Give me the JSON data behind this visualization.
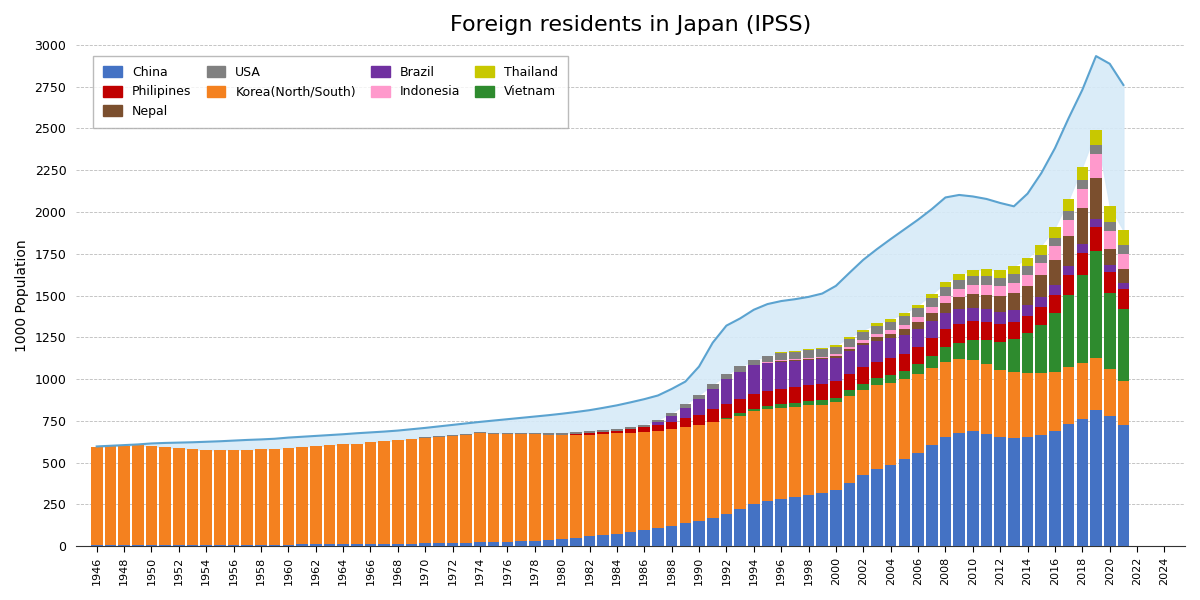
{
  "title": "Foreign residents in Japan (IPSS)",
  "ylabel": "1000 Population",
  "ylim": [
    0,
    3000
  ],
  "yticks": [
    0,
    250,
    500,
    750,
    1000,
    1250,
    1500,
    1750,
    2000,
    2250,
    2500,
    2750,
    3000
  ],
  "years": [
    1946,
    1947,
    1948,
    1949,
    1950,
    1951,
    1952,
    1953,
    1954,
    1955,
    1956,
    1957,
    1958,
    1959,
    1960,
    1961,
    1962,
    1963,
    1964,
    1965,
    1966,
    1967,
    1968,
    1969,
    1970,
    1971,
    1972,
    1973,
    1974,
    1975,
    1976,
    1977,
    1978,
    1979,
    1980,
    1981,
    1982,
    1983,
    1984,
    1985,
    1986,
    1987,
    1988,
    1989,
    1990,
    1991,
    1992,
    1993,
    1994,
    1995,
    1996,
    1997,
    1998,
    1999,
    2000,
    2001,
    2002,
    2003,
    2004,
    2005,
    2006,
    2007,
    2008,
    2009,
    2010,
    2011,
    2012,
    2013,
    2014,
    2015,
    2016,
    2017,
    2018,
    2019,
    2020,
    2021
  ],
  "china": [
    5,
    5,
    5,
    5,
    8,
    8,
    8,
    8,
    9,
    9,
    9,
    9,
    10,
    10,
    10,
    11,
    11,
    12,
    12,
    13,
    14,
    14,
    15,
    16,
    17,
    18,
    19,
    21,
    23,
    25,
    27,
    30,
    34,
    38,
    43,
    52,
    60,
    68,
    76,
    85,
    95,
    107,
    120,
    137,
    150,
    171,
    195,
    222,
    252,
    270,
    284,
    296,
    308,
    318,
    335,
    381,
    424,
    462,
    487,
    519,
    560,
    607,
    655,
    680,
    687,
    674,
    652,
    649,
    654,
    665,
    690,
    730,
    764,
    813,
    778,
    726
  ],
  "korea": [
    590,
    594,
    597,
    601,
    590,
    584,
    577,
    571,
    565,
    567,
    568,
    569,
    570,
    570,
    580,
    585,
    588,
    592,
    597,
    601,
    607,
    613,
    619,
    625,
    630,
    636,
    641,
    647,
    653,
    647,
    643,
    640,
    637,
    629,
    620,
    614,
    608,
    603,
    599,
    594,
    590,
    585,
    581,
    578,
    575,
    570,
    565,
    560,
    555,
    550,
    545,
    540,
    535,
    530,
    525,
    519,
    512,
    502,
    492,
    481,
    473,
    462,
    450,
    439,
    428,
    414,
    401,
    391,
    381,
    370,
    354,
    344,
    330,
    314,
    285,
    264
  ],
  "vietnam": [
    0,
    0,
    0,
    0,
    0,
    0,
    0,
    0,
    0,
    0,
    0,
    0,
    0,
    0,
    0,
    0,
    0,
    0,
    0,
    0,
    0,
    0,
    0,
    0,
    0,
    0,
    0,
    0,
    0,
    0,
    0,
    0,
    0,
    0,
    0,
    0,
    0,
    0,
    0,
    0,
    0,
    0,
    0,
    0,
    0,
    5,
    9,
    13,
    16,
    18,
    20,
    22,
    24,
    26,
    29,
    33,
    36,
    40,
    45,
    50,
    55,
    70,
    85,
    100,
    120,
    146,
    170,
    200,
    240,
    290,
    350,
    430,
    530,
    640,
    450,
    430
  ],
  "philippines": [
    0,
    0,
    0,
    0,
    0,
    0,
    0,
    0,
    0,
    0,
    0,
    0,
    0,
    0,
    0,
    0,
    0,
    0,
    0,
    0,
    0,
    0,
    0,
    0,
    0,
    0,
    0,
    0,
    0,
    0,
    0,
    0,
    0,
    0,
    5,
    7,
    9,
    12,
    16,
    22,
    28,
    35,
    43,
    52,
    62,
    74,
    82,
    87,
    89,
    91,
    93,
    95,
    96,
    97,
    98,
    99,
    100,
    101,
    102,
    103,
    104,
    105,
    108,
    110,
    110,
    107,
    105,
    103,
    101,
    105,
    112,
    120,
    132,
    143,
    125,
    118
  ],
  "brazil": [
    0,
    0,
    0,
    0,
    0,
    0,
    0,
    0,
    0,
    0,
    0,
    0,
    0,
    0,
    0,
    0,
    0,
    0,
    0,
    0,
    0,
    0,
    0,
    0,
    0,
    0,
    0,
    0,
    0,
    0,
    0,
    0,
    0,
    0,
    0,
    0,
    0,
    0,
    0,
    0,
    0,
    14,
    36,
    62,
    95,
    120,
    148,
    163,
    170,
    167,
    162,
    157,
    152,
    147,
    142,
    136,
    131,
    125,
    119,
    113,
    107,
    101,
    95,
    89,
    83,
    78,
    74,
    70,
    66,
    62,
    58,
    55,
    51,
    48,
    42,
    38
  ],
  "nepal": [
    0,
    0,
    0,
    0,
    0,
    0,
    0,
    0,
    0,
    0,
    0,
    0,
    0,
    0,
    0,
    0,
    0,
    0,
    0,
    0,
    0,
    0,
    0,
    0,
    0,
    0,
    0,
    0,
    0,
    0,
    0,
    0,
    0,
    0,
    0,
    0,
    0,
    0,
    0,
    0,
    0,
    0,
    0,
    0,
    0,
    0,
    0,
    0,
    0,
    2,
    3,
    4,
    5,
    7,
    9,
    12,
    16,
    20,
    26,
    33,
    42,
    51,
    62,
    72,
    79,
    86,
    93,
    102,
    115,
    130,
    150,
    180,
    215,
    245,
    100,
    80
  ],
  "indonesia": [
    0,
    0,
    0,
    0,
    0,
    0,
    0,
    0,
    0,
    0,
    0,
    0,
    0,
    0,
    0,
    0,
    0,
    0,
    0,
    0,
    0,
    0,
    0,
    0,
    0,
    0,
    0,
    0,
    0,
    0,
    0,
    0,
    0,
    0,
    0,
    0,
    0,
    0,
    0,
    0,
    0,
    0,
    0,
    0,
    0,
    0,
    0,
    0,
    0,
    5,
    6,
    7,
    8,
    9,
    10,
    12,
    15,
    18,
    22,
    25,
    30,
    35,
    42,
    50,
    55,
    58,
    60,
    62,
    65,
    70,
    80,
    95,
    118,
    145,
    108,
    92
  ],
  "usa": [
    0,
    0,
    0,
    0,
    0,
    0,
    0,
    0,
    0,
    0,
    0,
    0,
    0,
    0,
    0,
    0,
    0,
    0,
    0,
    0,
    0,
    0,
    0,
    0,
    5,
    5,
    5,
    6,
    6,
    6,
    7,
    7,
    8,
    8,
    9,
    10,
    10,
    11,
    12,
    13,
    15,
    17,
    19,
    22,
    25,
    28,
    30,
    31,
    32,
    33,
    42,
    43,
    44,
    45,
    46,
    47,
    48,
    49,
    50,
    51,
    52,
    52,
    52,
    52,
    52,
    52,
    52,
    52,
    52,
    52,
    52,
    52,
    52,
    52,
    52,
    52
  ],
  "thailand": [
    0,
    0,
    0,
    0,
    0,
    0,
    0,
    0,
    0,
    0,
    0,
    0,
    0,
    0,
    0,
    0,
    0,
    0,
    0,
    0,
    0,
    0,
    0,
    0,
    0,
    0,
    0,
    0,
    0,
    0,
    0,
    0,
    0,
    0,
    0,
    0,
    0,
    0,
    0,
    0,
    0,
    0,
    0,
    0,
    0,
    0,
    0,
    0,
    0,
    5,
    6,
    7,
    8,
    9,
    10,
    12,
    14,
    16,
    18,
    20,
    22,
    25,
    30,
    35,
    40,
    42,
    45,
    48,
    52,
    58,
    63,
    70,
    80,
    90,
    95,
    90
  ],
  "total_line": [
    597,
    601,
    605,
    609,
    615,
    618,
    620,
    622,
    625,
    628,
    632,
    636,
    639,
    643,
    650,
    655,
    660,
    665,
    670,
    676,
    681,
    686,
    692,
    700,
    708,
    717,
    726,
    735,
    744,
    752,
    760,
    768,
    776,
    784,
    793,
    803,
    814,
    828,
    843,
    861,
    880,
    902,
    941,
    985,
    1075,
    1218,
    1320,
    1363,
    1415,
    1449,
    1467,
    1478,
    1492,
    1512,
    1558,
    1637,
    1714,
    1778,
    1838,
    1896,
    1954,
    2017,
    2087,
    2102,
    2093,
    2078,
    2054,
    2034,
    2110,
    2232,
    2382,
    2562,
    2731,
    2933,
    2887,
    2760
  ],
  "colors": {
    "china": "#4472c4",
    "korea": "#f4811f",
    "vietnam": "#2e8b2e",
    "philippines": "#c00000",
    "brazil": "#7030a0",
    "nepal": "#7b4f2e",
    "indonesia": "#ff99cc",
    "usa": "#808080",
    "thailand": "#c8c800",
    "total_line": "#5ba3d0",
    "total_fill": "#d6eaf8"
  },
  "background_color": "#ffffff"
}
